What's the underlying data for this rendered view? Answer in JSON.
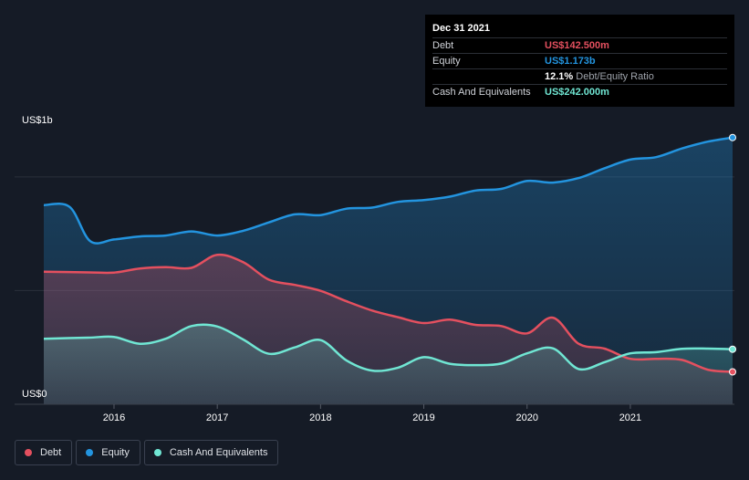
{
  "tooltip": {
    "date": "Dec 31 2021",
    "rows": [
      {
        "label": "Debt",
        "value": "US$142.500m",
        "color": "#e4505f"
      },
      {
        "label": "Equity",
        "value": "US$1.173b",
        "color": "#2394df"
      },
      {
        "label": "",
        "value": "12.1%",
        "suffix": "Debt/Equity Ratio",
        "color": "#ffffff"
      },
      {
        "label": "Cash And Equivalents",
        "value": "US$242.000m",
        "color": "#70e6d3"
      }
    ]
  },
  "legend": [
    {
      "label": "Debt",
      "color": "#e4505f"
    },
    {
      "label": "Equity",
      "color": "#2394df"
    },
    {
      "label": "Cash And Equivalents",
      "color": "#70e6d3"
    }
  ],
  "chart_data": {
    "type": "area",
    "ylabel_top": "US$1b",
    "ylabel_bottom": "US$0",
    "ylim": [
      0,
      1.2
    ],
    "xlim": [
      2015.32,
      2021.99
    ],
    "x_ticks": [
      {
        "label": "2016",
        "value": 2016
      },
      {
        "label": "2017",
        "value": 2017
      },
      {
        "label": "2018",
        "value": 2018
      },
      {
        "label": "2019",
        "value": 2019
      },
      {
        "label": "2020",
        "value": 2020
      },
      {
        "label": "2021",
        "value": 2021
      }
    ],
    "gridlines": [
      0,
      0.5,
      1.0
    ],
    "series": [
      {
        "name": "Equity",
        "color": "#2394df",
        "points": [
          [
            2015.32,
            0.876
          ],
          [
            2015.57,
            0.868
          ],
          [
            2015.77,
            0.717
          ],
          [
            2016.0,
            0.725
          ],
          [
            2016.25,
            0.738
          ],
          [
            2016.5,
            0.742
          ],
          [
            2016.75,
            0.76
          ],
          [
            2017.0,
            0.742
          ],
          [
            2017.25,
            0.763
          ],
          [
            2017.5,
            0.8
          ],
          [
            2017.75,
            0.835
          ],
          [
            2018.0,
            0.832
          ],
          [
            2018.25,
            0.86
          ],
          [
            2018.5,
            0.865
          ],
          [
            2018.75,
            0.89
          ],
          [
            2019.0,
            0.898
          ],
          [
            2019.25,
            0.913
          ],
          [
            2019.5,
            0.94
          ],
          [
            2019.75,
            0.947
          ],
          [
            2020.0,
            0.982
          ],
          [
            2020.25,
            0.975
          ],
          [
            2020.5,
            0.995
          ],
          [
            2020.75,
            1.038
          ],
          [
            2021.0,
            1.076
          ],
          [
            2021.25,
            1.087
          ],
          [
            2021.5,
            1.125
          ],
          [
            2021.75,
            1.155
          ],
          [
            2021.99,
            1.173
          ]
        ]
      },
      {
        "name": "Debt",
        "color": "#e4505f",
        "points": [
          [
            2015.32,
            0.583
          ],
          [
            2015.75,
            0.58
          ],
          [
            2016.0,
            0.579
          ],
          [
            2016.25,
            0.597
          ],
          [
            2016.5,
            0.603
          ],
          [
            2016.75,
            0.6
          ],
          [
            2017.0,
            0.657
          ],
          [
            2017.25,
            0.625
          ],
          [
            2017.5,
            0.548
          ],
          [
            2017.75,
            0.525
          ],
          [
            2018.0,
            0.499
          ],
          [
            2018.25,
            0.453
          ],
          [
            2018.5,
            0.412
          ],
          [
            2018.75,
            0.383
          ],
          [
            2019.0,
            0.357
          ],
          [
            2019.25,
            0.372
          ],
          [
            2019.5,
            0.349
          ],
          [
            2019.75,
            0.344
          ],
          [
            2020.0,
            0.312
          ],
          [
            2020.25,
            0.381
          ],
          [
            2020.5,
            0.266
          ],
          [
            2020.75,
            0.245
          ],
          [
            2021.0,
            0.2
          ],
          [
            2021.25,
            0.2
          ],
          [
            2021.5,
            0.195
          ],
          [
            2021.75,
            0.152
          ],
          [
            2021.99,
            0.1425
          ]
        ]
      },
      {
        "name": "Cash And Equivalents",
        "color": "#70e6d3",
        "points": [
          [
            2015.32,
            0.288
          ],
          [
            2015.75,
            0.293
          ],
          [
            2016.0,
            0.296
          ],
          [
            2016.25,
            0.266
          ],
          [
            2016.5,
            0.288
          ],
          [
            2016.75,
            0.344
          ],
          [
            2017.0,
            0.342
          ],
          [
            2017.25,
            0.285
          ],
          [
            2017.5,
            0.222
          ],
          [
            2017.75,
            0.25
          ],
          [
            2018.0,
            0.282
          ],
          [
            2018.25,
            0.193
          ],
          [
            2018.5,
            0.148
          ],
          [
            2018.75,
            0.161
          ],
          [
            2019.0,
            0.207
          ],
          [
            2019.25,
            0.178
          ],
          [
            2019.5,
            0.172
          ],
          [
            2019.75,
            0.179
          ],
          [
            2020.0,
            0.224
          ],
          [
            2020.25,
            0.246
          ],
          [
            2020.5,
            0.155
          ],
          [
            2020.75,
            0.185
          ],
          [
            2021.0,
            0.224
          ],
          [
            2021.25,
            0.229
          ],
          [
            2021.5,
            0.244
          ],
          [
            2021.75,
            0.245
          ],
          [
            2021.99,
            0.242
          ]
        ]
      }
    ]
  }
}
